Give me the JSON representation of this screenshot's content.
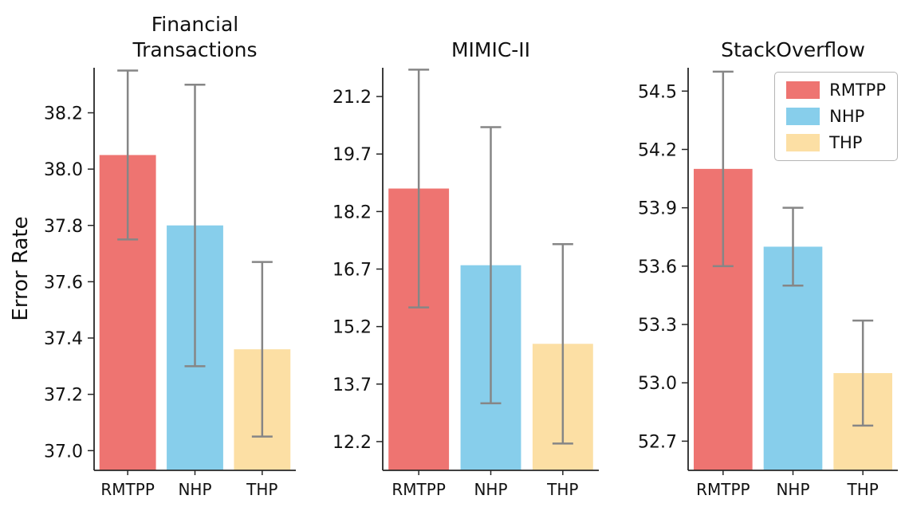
{
  "figure": {
    "ylabel": "Error Rate",
    "background": "#ffffff",
    "axis_color": "#262626",
    "text_color": "#111111",
    "error_bar_color": "#868686"
  },
  "legend": {
    "position": "upper right",
    "items": [
      {
        "label": "RMTPP",
        "color": "#ee7471"
      },
      {
        "label": "NHP",
        "color": "#87ceeb"
      },
      {
        "label": "THP",
        "color": "#fcdfa4"
      }
    ]
  },
  "chart_data": [
    {
      "type": "bar",
      "title": "Financial\nTransactions",
      "ylabel": "Error Rate",
      "categories": [
        "RMTPP",
        "NHP",
        "THP"
      ],
      "values": [
        38.05,
        37.8,
        37.36
      ],
      "yerr": [
        0.3,
        0.5,
        0.31
      ],
      "ylim": [
        36.93,
        38.36
      ],
      "yticks": [
        37.0,
        37.2,
        37.4,
        37.6,
        37.8,
        38.0,
        38.2
      ],
      "ytick_labels": [
        "37.0",
        "37.2",
        "37.4",
        "37.6",
        "37.8",
        "38.0",
        "38.2"
      ],
      "bar_colors": [
        "#ee7471",
        "#87ceeb",
        "#fcdfa4"
      ],
      "grid": false,
      "legend": false
    },
    {
      "type": "bar",
      "title": "MIMIC-II",
      "ylabel": "",
      "categories": [
        "RMTPP",
        "NHP",
        "THP"
      ],
      "values": [
        18.8,
        16.8,
        14.75
      ],
      "yerr": [
        3.1,
        3.6,
        2.6
      ],
      "ylim": [
        11.45,
        21.95
      ],
      "yticks": [
        12.2,
        13.7,
        15.2,
        16.7,
        18.2,
        19.7,
        21.2
      ],
      "ytick_labels": [
        "12.2",
        "13.7",
        "15.2",
        "16.7",
        "18.2",
        "19.7",
        "21.2"
      ],
      "bar_colors": [
        "#ee7471",
        "#87ceeb",
        "#fcdfa4"
      ],
      "grid": false,
      "legend": false
    },
    {
      "type": "bar",
      "title": "StackOverflow",
      "ylabel": "",
      "categories": [
        "RMTPP",
        "NHP",
        "THP"
      ],
      "values": [
        54.1,
        53.7,
        53.05
      ],
      "yerr": [
        0.5,
        0.2,
        0.27
      ],
      "ylim": [
        52.55,
        54.62
      ],
      "yticks": [
        52.7,
        53.0,
        53.3,
        53.6,
        53.9,
        54.2,
        54.5
      ],
      "ytick_labels": [
        "52.7",
        "53.0",
        "53.3",
        "53.6",
        "53.9",
        "54.2",
        "54.5"
      ],
      "bar_colors": [
        "#ee7471",
        "#87ceeb",
        "#fcdfa4"
      ],
      "grid": false,
      "legend": true
    }
  ]
}
